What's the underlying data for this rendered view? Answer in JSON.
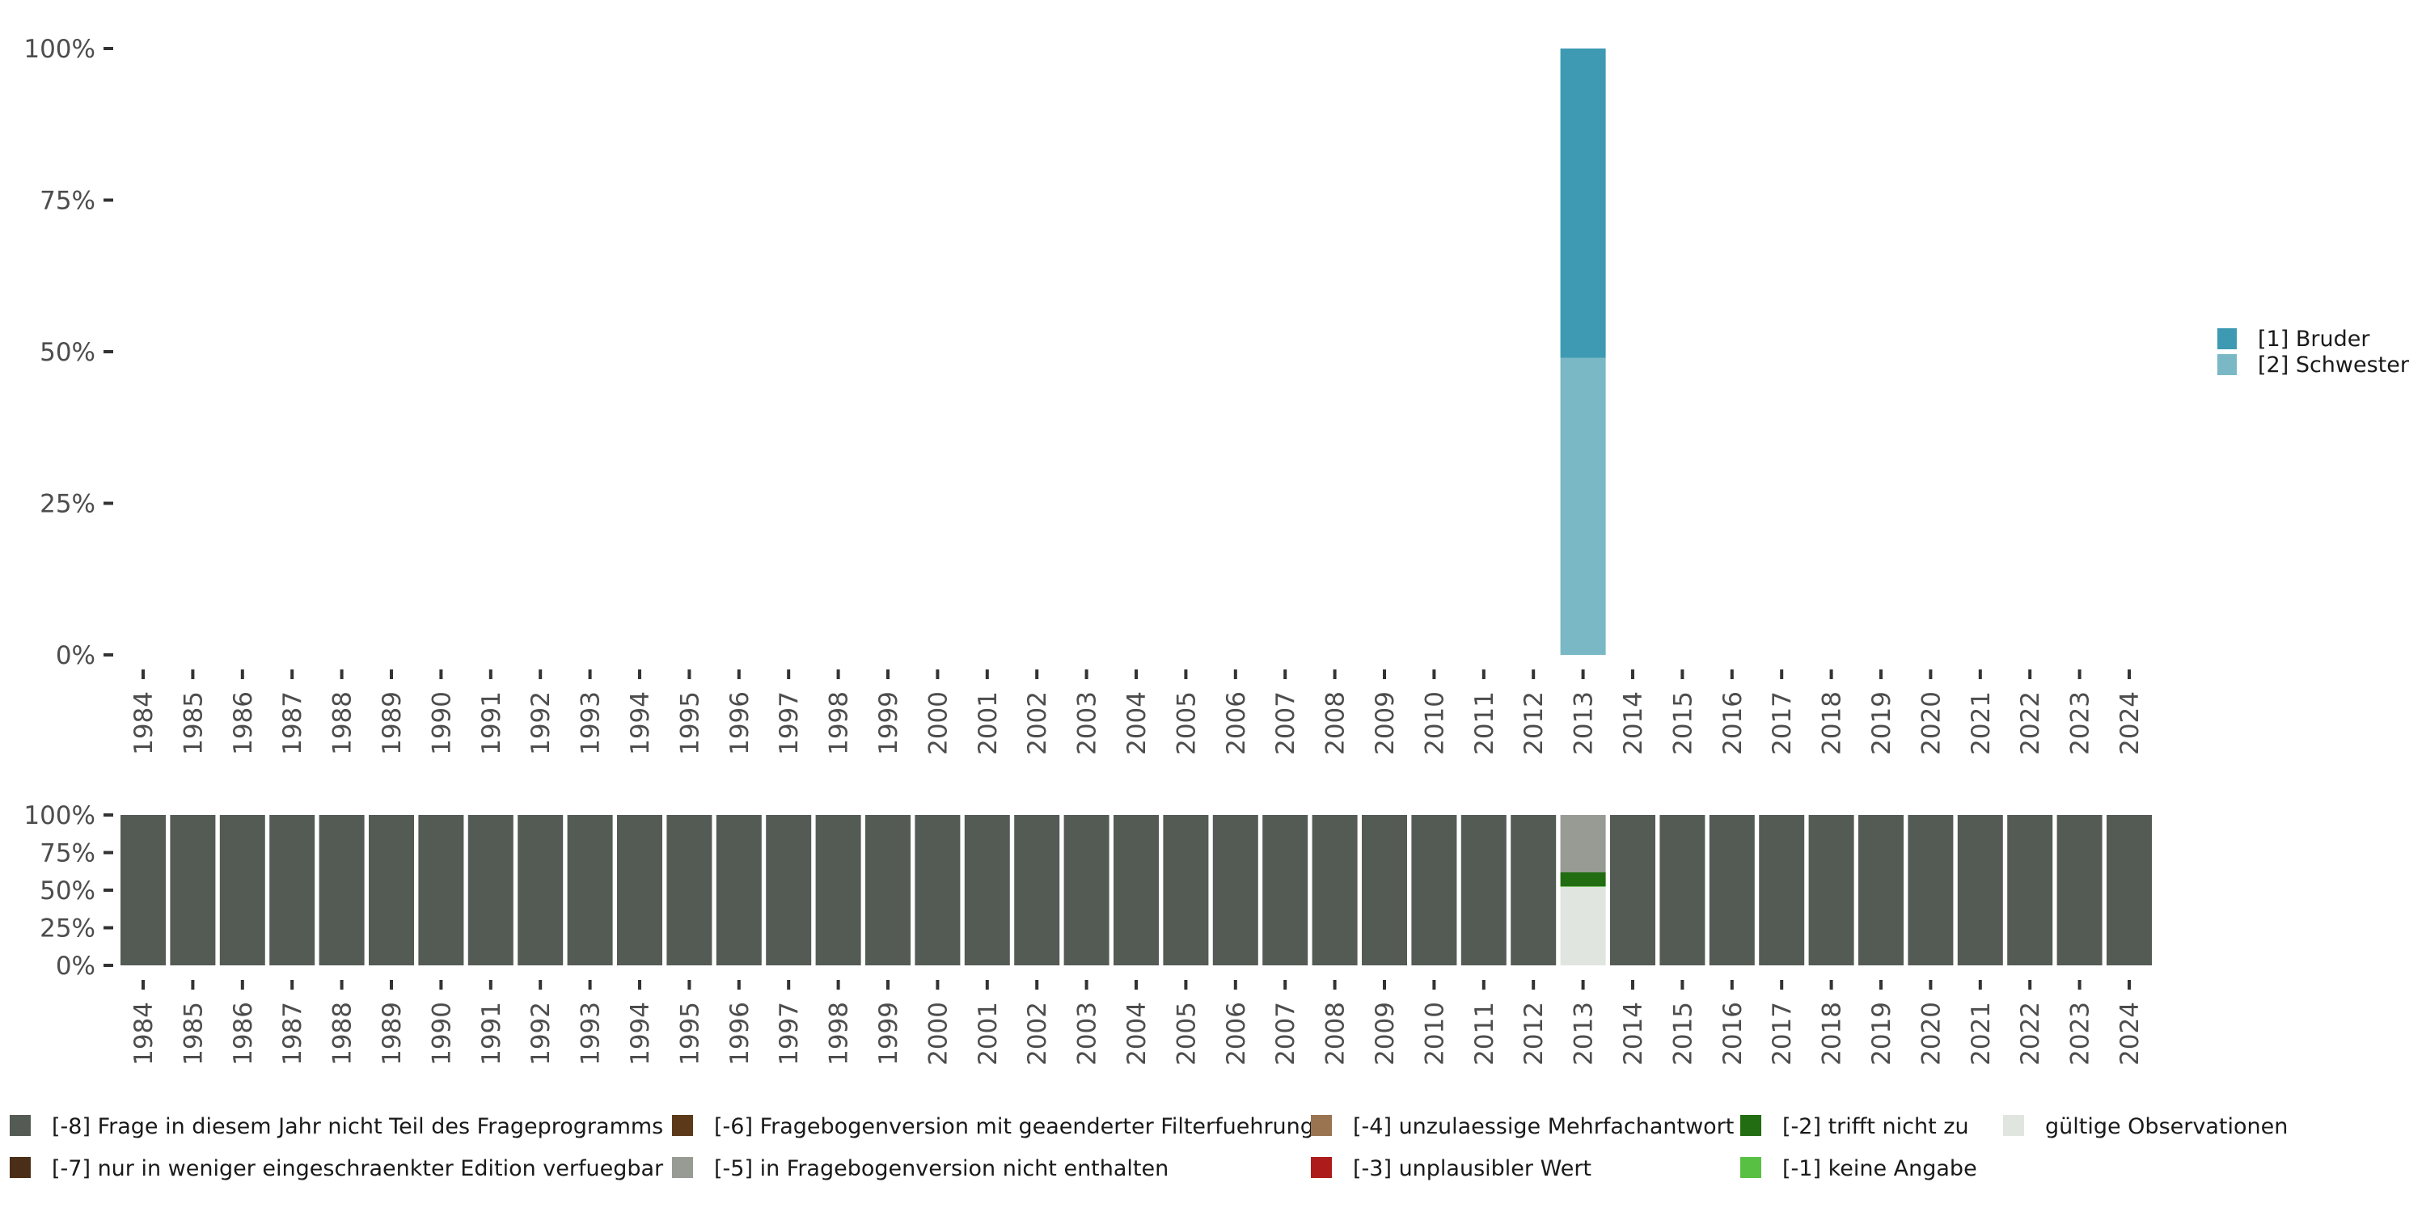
{
  "chart_data": [
    {
      "type": "bar",
      "stacked": true,
      "title": "",
      "xlabel": "",
      "ylabel": "",
      "ylim": [
        0,
        100
      ],
      "yticks": [
        "0%",
        "25%",
        "50%",
        "75%",
        "100%"
      ],
      "categories": [
        "1984",
        "1985",
        "1986",
        "1987",
        "1988",
        "1989",
        "1990",
        "1991",
        "1992",
        "1993",
        "1994",
        "1995",
        "1996",
        "1997",
        "1998",
        "1999",
        "2000",
        "2001",
        "2002",
        "2003",
        "2004",
        "2005",
        "2006",
        "2007",
        "2008",
        "2009",
        "2010",
        "2011",
        "2012",
        "2013",
        "2014",
        "2015",
        "2016",
        "2017",
        "2018",
        "2019",
        "2020",
        "2021",
        "2022",
        "2023",
        "2024"
      ],
      "series": [
        {
          "name": "[2] Schwester",
          "color": "#7ab8c6",
          "values": {
            "2013": 49
          }
        },
        {
          "name": "[1] Bruder",
          "color": "#3d9ab2",
          "values": {
            "2013": 51
          }
        }
      ],
      "legend_position": "right"
    },
    {
      "type": "bar",
      "stacked": true,
      "ylim": [
        0,
        100
      ],
      "yticks": [
        "0%",
        "25%",
        "50%",
        "75%",
        "100%"
      ],
      "categories": [
        "1984",
        "1985",
        "1986",
        "1987",
        "1988",
        "1989",
        "1990",
        "1991",
        "1992",
        "1993",
        "1994",
        "1995",
        "1996",
        "1997",
        "1998",
        "1999",
        "2000",
        "2001",
        "2002",
        "2003",
        "2004",
        "2005",
        "2006",
        "2007",
        "2008",
        "2009",
        "2010",
        "2011",
        "2012",
        "2013",
        "2014",
        "2015",
        "2016",
        "2017",
        "2018",
        "2019",
        "2020",
        "2021",
        "2022",
        "2023",
        "2024"
      ],
      "default_stack": [
        {
          "key": "m8",
          "value": 100
        }
      ],
      "stacks": {
        "2013": [
          {
            "key": "valid",
            "value": 52.2
          },
          {
            "key": "m1",
            "value": 0.4
          },
          {
            "key": "m2",
            "value": 9.4
          },
          {
            "key": "m5",
            "value": 38
          }
        ]
      },
      "legend": [
        {
          "key": "m8",
          "label": "[-8] Frage in diesem Jahr nicht Teil des Frageprogramms",
          "color": "#545b55"
        },
        {
          "key": "m7",
          "label": "[-7] nur in weniger eingeschraenkter Edition verfuegbar",
          "color": "#4b2e17"
        },
        {
          "key": "m6",
          "label": "[-6] Fragebogenversion mit geaenderter Filterfuehrung",
          "color": "#5c3a19"
        },
        {
          "key": "m5",
          "label": "[-5] in Fragebogenversion nicht enthalten",
          "color": "#979b94"
        },
        {
          "key": "m4",
          "label": "[-4] unzulaessige Mehrfachantwort",
          "color": "#9a7450"
        },
        {
          "key": "m3",
          "label": "[-3] unplausibler Wert",
          "color": "#ad1b1b"
        },
        {
          "key": "m2",
          "label": "[-2] trifft nicht zu",
          "color": "#226c12"
        },
        {
          "key": "m1",
          "label": "[-1] keine Angabe",
          "color": "#58c043"
        },
        {
          "key": "valid",
          "label": "gültige Observationen",
          "color": "#e0e5df"
        }
      ],
      "legend_position": "bottom"
    }
  ]
}
